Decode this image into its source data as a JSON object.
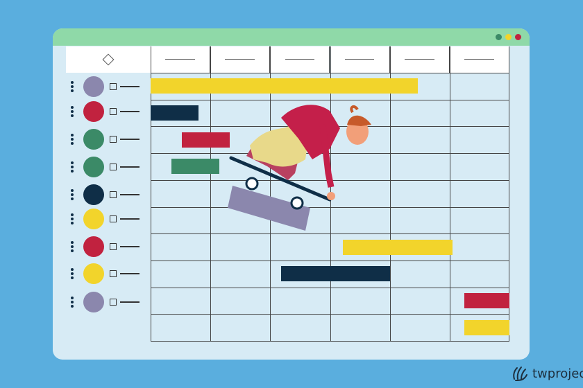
{
  "window": {
    "controls": [
      {
        "name": "minimize",
        "color": "#3b8a67"
      },
      {
        "name": "maximize",
        "color": "#f2d42b"
      },
      {
        "name": "close",
        "color": "#c1223f"
      }
    ],
    "header_icon": "diamond-icon"
  },
  "colors": {
    "background": "#5aaede",
    "panel": "#d7ebf5",
    "titlebar": "#8fd9a8"
  },
  "tasks": [
    {
      "color": "#8b87ad"
    },
    {
      "color": "#c1223f"
    },
    {
      "color": "#3b8a67"
    },
    {
      "color": "#3b8a67"
    },
    {
      "color": "#0f2e47"
    },
    {
      "color": "#f2d42b"
    },
    {
      "color": "#c1223f"
    },
    {
      "color": "#f2d42b"
    },
    {
      "color": "#8b87ad"
    }
  ],
  "gantt": {
    "columns": 6,
    "rows": 10,
    "bars": [
      {
        "row": 0,
        "start": 0,
        "end": 4.47,
        "color": "#f2d42b"
      },
      {
        "row": 1,
        "start": 0,
        "end": 0.8,
        "color": "#0f2e47"
      },
      {
        "row": 2,
        "start": 0.52,
        "end": 1.32,
        "color": "#c1223f"
      },
      {
        "row": 3,
        "start": 0.35,
        "end": 1.15,
        "color": "#3b8a67"
      },
      {
        "row": 6,
        "start": 3.22,
        "end": 5.05,
        "color": "#f2d42b"
      },
      {
        "row": 7,
        "start": 2.18,
        "end": 4.0,
        "color": "#0f2e47"
      },
      {
        "row": 8,
        "start": 5.25,
        "end": 6,
        "color": "#c1223f"
      },
      {
        "row": 9,
        "start": 5.25,
        "end": 6,
        "color": "#f2d42b"
      }
    ]
  },
  "brand": {
    "name": "twproject"
  }
}
